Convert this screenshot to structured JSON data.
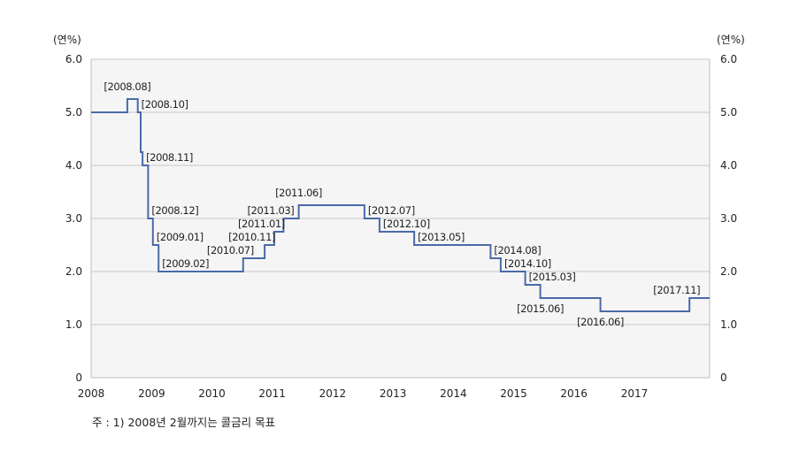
{
  "chart_data": {
    "type": "line",
    "step": true,
    "x_range": [
      "2008-01-01",
      "2018-04-01"
    ],
    "y_range": [
      0,
      6
    ],
    "grid": true,
    "y_ticks": [
      {
        "value": 0,
        "label": "0"
      },
      {
        "value": 1,
        "label": "1.0"
      },
      {
        "value": 2,
        "label": "2.0"
      },
      {
        "value": 3,
        "label": "3.0"
      },
      {
        "value": 4,
        "label": "4.0"
      },
      {
        "value": 5,
        "label": "5.0"
      },
      {
        "value": 6,
        "label": "6.0"
      }
    ],
    "x_ticks": [
      "2008",
      "2009",
      "2010",
      "2011",
      "2012",
      "2013",
      "2014",
      "2015",
      "2016",
      "2017"
    ],
    "y_unit_left": "(연%)",
    "y_unit_right": "(연%)",
    "color": "#4a6aa8",
    "points": [
      {
        "date": "2008-01-01",
        "value": 5.0
      },
      {
        "date": "2008-08-07",
        "value": 5.25
      },
      {
        "date": "2008-10-09",
        "value": 5.0
      },
      {
        "date": "2008-10-27",
        "value": 4.25
      },
      {
        "date": "2008-11-07",
        "value": 4.0
      },
      {
        "date": "2008-12-11",
        "value": 3.0
      },
      {
        "date": "2009-01-09",
        "value": 2.5
      },
      {
        "date": "2009-02-12",
        "value": 2.0
      },
      {
        "date": "2010-07-09",
        "value": 2.25
      },
      {
        "date": "2010-11-16",
        "value": 2.5
      },
      {
        "date": "2011-01-13",
        "value": 2.75
      },
      {
        "date": "2011-03-10",
        "value": 3.0
      },
      {
        "date": "2011-06-10",
        "value": 3.25
      },
      {
        "date": "2012-07-12",
        "value": 3.0
      },
      {
        "date": "2012-10-11",
        "value": 2.75
      },
      {
        "date": "2013-05-09",
        "value": 2.5
      },
      {
        "date": "2014-08-14",
        "value": 2.25
      },
      {
        "date": "2014-10-15",
        "value": 2.0
      },
      {
        "date": "2015-03-12",
        "value": 1.75
      },
      {
        "date": "2015-06-11",
        "value": 1.5
      },
      {
        "date": "2016-06-09",
        "value": 1.25
      },
      {
        "date": "2017-11-30",
        "value": 1.5
      }
    ],
    "annotations": [
      {
        "label": "[2008.08]",
        "date": "2008-08-07",
        "value": 5.25,
        "pos": "above"
      },
      {
        "label": "[2008.10]",
        "date": "2008-10-09",
        "value": 5.0,
        "pos": "right"
      },
      {
        "label": "[2008.11]",
        "date": "2008-11-07",
        "value": 4.0,
        "pos": "right"
      },
      {
        "label": "[2008.12]",
        "date": "2008-12-11",
        "value": 3.0,
        "pos": "right"
      },
      {
        "label": "[2009.01]",
        "date": "2009-01-09",
        "value": 2.5,
        "pos": "right"
      },
      {
        "label": "[2009.02]",
        "date": "2009-02-12",
        "value": 2.0,
        "pos": "right"
      },
      {
        "label": "[2010.07]",
        "date": "2010-07-09",
        "value": 2.25,
        "pos": "above-left"
      },
      {
        "label": "[2010.11]",
        "date": "2010-11-16",
        "value": 2.5,
        "pos": "above-left"
      },
      {
        "label": "[2011.01]",
        "date": "2011-01-13",
        "value": 2.75,
        "pos": "above-left"
      },
      {
        "label": "[2011.03]",
        "date": "2011-03-10",
        "value": 3.0,
        "pos": "above-left"
      },
      {
        "label": "[2011.06]",
        "date": "2011-06-10",
        "value": 3.25,
        "pos": "above"
      },
      {
        "label": "[2012.07]",
        "date": "2012-07-12",
        "value": 3.0,
        "pos": "right"
      },
      {
        "label": "[2012.10]",
        "date": "2012-10-11",
        "value": 2.75,
        "pos": "right"
      },
      {
        "label": "[2013.05]",
        "date": "2013-05-09",
        "value": 2.5,
        "pos": "right"
      },
      {
        "label": "[2014.08]",
        "date": "2014-08-14",
        "value": 2.25,
        "pos": "right"
      },
      {
        "label": "[2014.10]",
        "date": "2014-10-15",
        "value": 2.0,
        "pos": "right"
      },
      {
        "label": "[2015.03]",
        "date": "2015-03-12",
        "value": 1.75,
        "pos": "right"
      },
      {
        "label": "[2015.06]",
        "date": "2015-06-11",
        "value": 1.5,
        "pos": "below"
      },
      {
        "label": "[2016.06]",
        "date": "2016-06-09",
        "value": 1.25,
        "pos": "below"
      },
      {
        "label": "[2017.11]",
        "date": "2017-11-30",
        "value": 1.5,
        "pos": "above-left"
      }
    ]
  },
  "footnote": "주 : 1) 2008년 2월까지는 콜금리 목표"
}
